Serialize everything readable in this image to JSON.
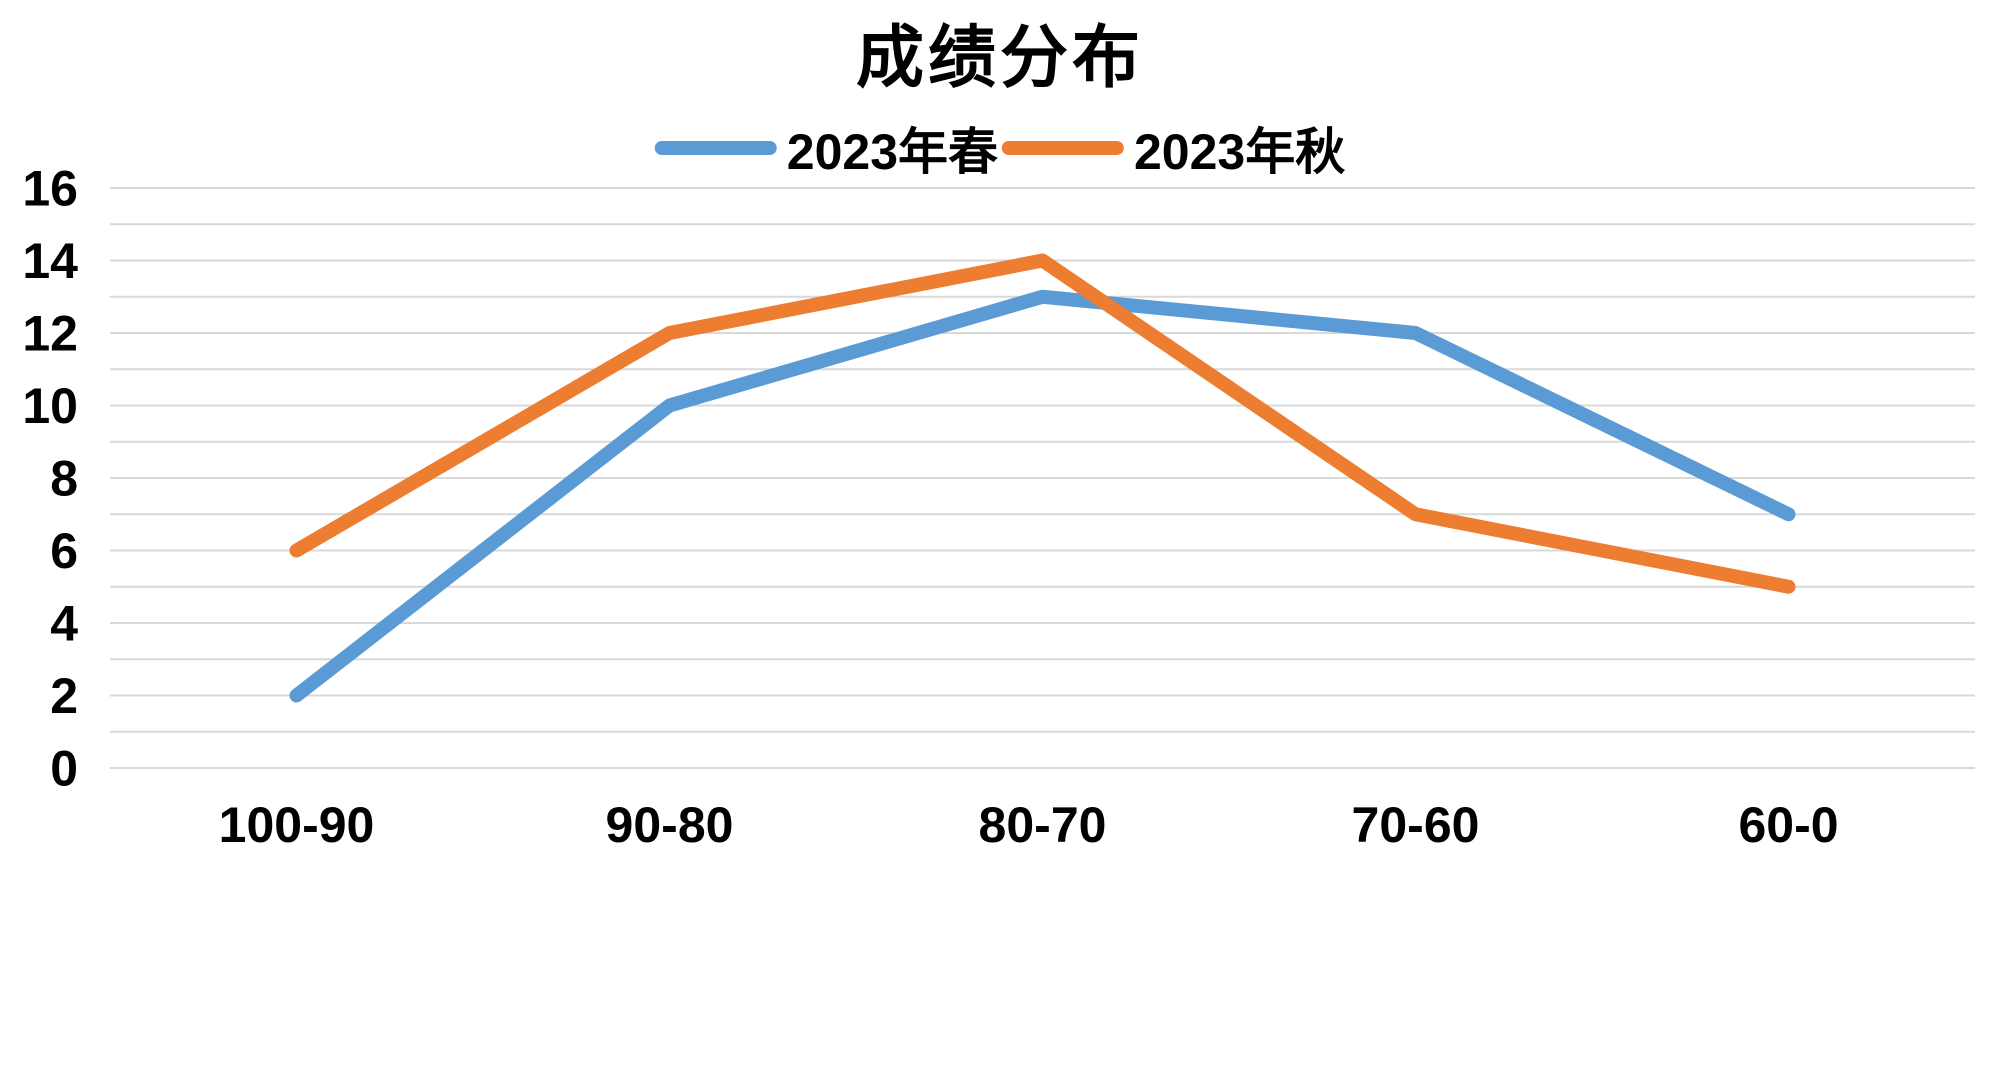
{
  "chart_data": {
    "type": "line",
    "title": "成绩分布",
    "categories": [
      "100-90",
      "90-80",
      "80-70",
      "70-60",
      "60-0"
    ],
    "series": [
      {
        "name": "2023年春",
        "color": "#5B9BD5",
        "values": [
          2,
          10,
          13,
          12,
          7
        ]
      },
      {
        "name": "2023年秋",
        "color": "#ED7D31",
        "values": [
          6,
          12,
          14,
          7,
          5
        ]
      }
    ],
    "xlabel": "",
    "ylabel": "",
    "ylim": [
      0,
      16
    ],
    "ytick_step": 2,
    "grid_step": 1,
    "grid_on": true,
    "grid_color": "#d9d9d9",
    "text_color": "#000000",
    "legend_position": "top"
  }
}
